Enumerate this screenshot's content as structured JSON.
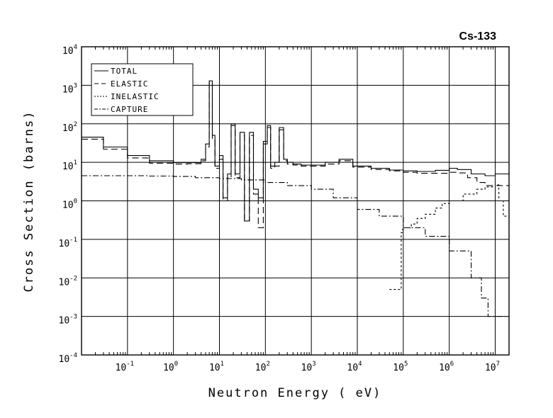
{
  "chart_data": {
    "type": "line",
    "title": "Cs-133",
    "xlabel": "Neutron Energy ( eV)",
    "ylabel": "Cross Section (barns)",
    "x_scale": "log",
    "y_scale": "log",
    "xlim": [
      0.01,
      20000000
    ],
    "ylim": [
      0.0001,
      10000
    ],
    "grid": true,
    "legend_position": "top-left",
    "x_ticks": [
      {
        "base": "10",
        "exp": "-1",
        "value": 0.1
      },
      {
        "base": "10",
        "exp": "0",
        "value": 1
      },
      {
        "base": "10",
        "exp": "1",
        "value": 10
      },
      {
        "base": "10",
        "exp": "2",
        "value": 100
      },
      {
        "base": "10",
        "exp": "3",
        "value": 1000
      },
      {
        "base": "10",
        "exp": "4",
        "value": 10000
      },
      {
        "base": "10",
        "exp": "5",
        "value": 100000
      },
      {
        "base": "10",
        "exp": "6",
        "value": 1000000
      },
      {
        "base": "10",
        "exp": "7",
        "value": 10000000
      }
    ],
    "y_ticks": [
      {
        "base": "10",
        "exp": "4",
        "value": 10000
      },
      {
        "base": "10",
        "exp": "3",
        "value": 1000
      },
      {
        "base": "10",
        "exp": "2",
        "value": 100
      },
      {
        "base": "10",
        "exp": "1",
        "value": 10
      },
      {
        "base": "10",
        "exp": "0",
        "value": 1
      },
      {
        "base": "10",
        "exp": "-1",
        "value": 0.1
      },
      {
        "base": "10",
        "exp": "-2",
        "value": 0.01
      },
      {
        "base": "10",
        "exp": "-3",
        "value": 0.001
      },
      {
        "base": "10",
        "exp": "-4",
        "value": 0.0001
      }
    ],
    "series": [
      {
        "name": "TOTAL",
        "dash": "",
        "x": [
          0.01,
          0.03,
          0.1,
          0.3,
          1,
          2,
          4,
          5,
          6,
          7,
          8,
          10,
          12,
          15,
          18,
          22,
          28,
          35,
          45,
          55,
          70,
          90,
          110,
          130,
          160,
          200,
          250,
          300,
          400,
          600,
          1000,
          2000,
          4000,
          8000,
          20000,
          50000,
          100000,
          200000,
          500000,
          1000000,
          1500000,
          3000000,
          6000000,
          10000000,
          20000000
        ],
        "y": [
          45,
          25,
          15,
          11,
          9.8,
          9.8,
          12,
          30,
          1300,
          50,
          8,
          15,
          1.2,
          5,
          100,
          5,
          60,
          0.3,
          60,
          2,
          1.2,
          35,
          90,
          8,
          10,
          80,
          12,
          10,
          9,
          8.5,
          8.5,
          10,
          12,
          8,
          7,
          6.3,
          6,
          5.8,
          6.2,
          7,
          6.5,
          5,
          4.5,
          5,
          5
        ]
      },
      {
        "name": "ELASTIC",
        "dash": "9,5",
        "x": [
          0.01,
          0.03,
          0.1,
          0.3,
          1,
          2,
          4,
          5,
          6,
          7,
          8,
          10,
          12,
          15,
          18,
          22,
          28,
          35,
          45,
          55,
          70,
          90,
          110,
          130,
          160,
          200,
          250,
          300,
          400,
          600,
          1000,
          2000,
          4000,
          8000,
          20000,
          50000,
          100000,
          200000,
          500000,
          1000000,
          1500000,
          2500000,
          4000000,
          6000000,
          10000000,
          20000000
        ],
        "y": [
          40,
          22,
          13,
          9.5,
          9,
          9.2,
          11,
          25,
          1200,
          40,
          7,
          12,
          1,
          4,
          90,
          4,
          50,
          0.3,
          50,
          1.5,
          0.2,
          30,
          80,
          7,
          8,
          70,
          11,
          9,
          8.5,
          8,
          8,
          9,
          11,
          7.5,
          6.5,
          6,
          5.5,
          5.2,
          5.2,
          5.5,
          5.3,
          4,
          3,
          2.5,
          2.5,
          2.5
        ]
      },
      {
        "name": "INELASTIC",
        "dash": "3,3",
        "x": [
          50000,
          80000,
          90000,
          95000,
          100000,
          150000,
          200000,
          300000,
          500000,
          700000,
          1000000,
          2000000,
          4000000,
          6000000,
          10000000,
          12000000,
          15000000,
          20000000
        ],
        "y": [
          0.005,
          0.005,
          0.15,
          0.18,
          0.2,
          0.25,
          0.35,
          0.45,
          0.65,
          0.85,
          1.0,
          1.5,
          2.0,
          2.3,
          2.6,
          1.0,
          0.4,
          0.25
        ]
      },
      {
        "name": "CAPTURE",
        "dash": "8,3,2,3",
        "x": [
          0.01,
          0.03,
          0.1,
          0.3,
          1,
          3,
          10,
          30,
          100,
          300,
          1000,
          3000,
          10000,
          30000,
          100000,
          300000,
          1000000,
          3000000,
          5000000,
          7000000,
          10000000,
          20000000
        ],
        "y": [
          4.5,
          4.5,
          4.5,
          4.4,
          4.3,
          4.0,
          3.8,
          3.5,
          3.0,
          2.5,
          2.0,
          1.2,
          0.6,
          0.4,
          0.2,
          0.12,
          0.05,
          0.01,
          0.003,
          0.001,
          0.001,
          0.001
        ]
      }
    ]
  }
}
